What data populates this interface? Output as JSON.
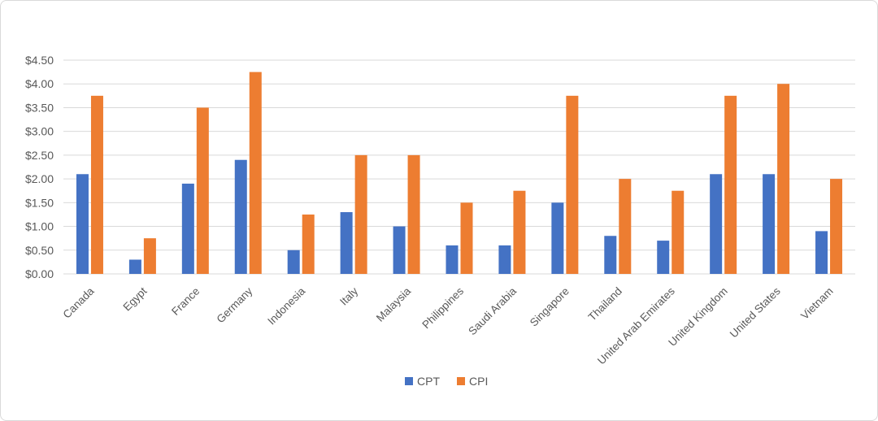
{
  "chart_data": {
    "type": "bar",
    "title": "",
    "xlabel": "",
    "ylabel": "",
    "ylim": [
      0,
      4.5
    ],
    "ytick_step": 0.5,
    "ytick_labels": [
      "$0.00",
      "$0.50",
      "$1.00",
      "$1.50",
      "$2.00",
      "$2.50",
      "$3.00",
      "$3.50",
      "$4.00",
      "$4.50"
    ],
    "grid": true,
    "legend_position": "bottom",
    "categories": [
      "Canada",
      "Egypt",
      "France",
      "Germany",
      "Indonesia",
      "Italy",
      "Malaysia",
      "Philippines",
      "Saudi Arabia",
      "Singapore",
      "Thailand",
      "United Arab Emirates",
      "United Kingdom",
      "United States",
      "Vietnam"
    ],
    "series": [
      {
        "name": "CPT",
        "color": "#4472c4",
        "values": [
          2.1,
          0.3,
          1.9,
          2.4,
          0.5,
          1.3,
          1.0,
          0.6,
          0.6,
          1.5,
          0.8,
          0.7,
          2.1,
          2.1,
          0.9
        ]
      },
      {
        "name": "CPI",
        "color": "#ed7d31",
        "values": [
          3.75,
          0.75,
          3.5,
          4.25,
          1.25,
          2.5,
          2.5,
          1.5,
          1.75,
          3.75,
          2.0,
          1.75,
          3.75,
          4.0,
          2.0
        ]
      }
    ]
  }
}
